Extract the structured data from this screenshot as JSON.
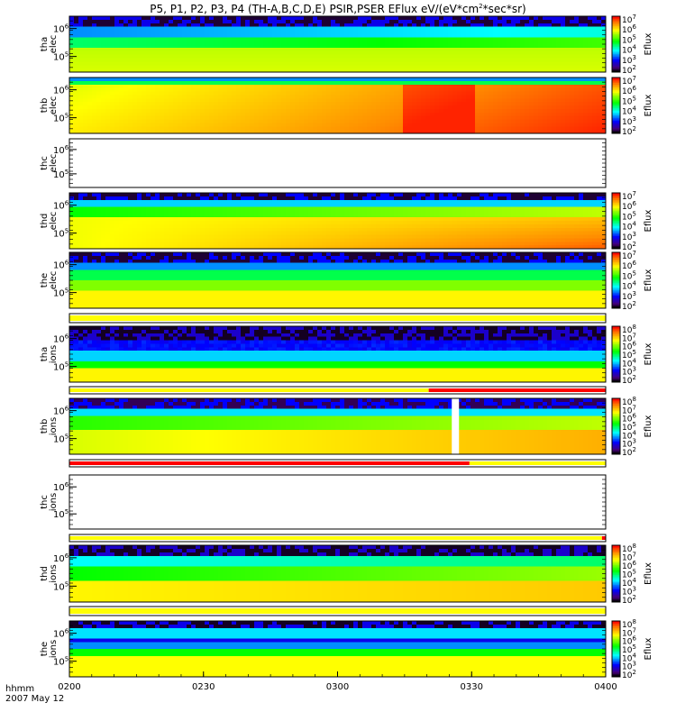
{
  "figure": {
    "title": "P5, P1, P2, P3, P4 (TH-A,B,C,D,E) PSIR,PSER EFlux eV/(eV*cm",
    "title_sup": "2",
    "title_end": "*sec*sr)",
    "time_label": "hhmm",
    "date_label": "2007 May 12"
  },
  "chart_data": {
    "type": "heatmap",
    "x_ticks": [
      "0200",
      "0230",
      "0300",
      "0330",
      "0400"
    ],
    "x_range": [
      "0200",
      "0400"
    ],
    "colorbar_label": "Eflux",
    "panels": [
      {
        "probe": "tha",
        "species": "elec",
        "y_ticks": [
          "10",
          "10"
        ],
        "y_exps": [
          "5",
          "6"
        ],
        "cb_exps": [
          "2",
          "3",
          "4",
          "5",
          "6",
          "7"
        ],
        "empty": false,
        "style": "tha_e"
      },
      {
        "probe": "thb",
        "species": "elec",
        "y_ticks": [
          "10",
          "10"
        ],
        "y_exps": [
          "5",
          "6"
        ],
        "cb_exps": [
          "2",
          "3",
          "4",
          "5",
          "6",
          "7"
        ],
        "empty": false,
        "style": "thb_e"
      },
      {
        "probe": "thc",
        "species": "elec",
        "y_ticks": [
          "10",
          "10"
        ],
        "y_exps": [
          "5",
          "6"
        ],
        "cb_exps": [],
        "empty": true,
        "style": "empty"
      },
      {
        "probe": "thd",
        "species": "elec",
        "y_ticks": [
          "10",
          "10"
        ],
        "y_exps": [
          "5",
          "6"
        ],
        "cb_exps": [
          "2",
          "3",
          "4",
          "5",
          "6",
          "7"
        ],
        "empty": false,
        "style": "thd_e"
      },
      {
        "probe": "the",
        "species": "elec",
        "y_ticks": [
          "10",
          "10"
        ],
        "y_exps": [
          "5",
          "6"
        ],
        "cb_exps": [
          "2",
          "3",
          "4",
          "5",
          "6",
          "7"
        ],
        "empty": false,
        "style": "the_e"
      },
      {
        "probe": "tha",
        "species": "ions",
        "y_ticks": [
          "10",
          "10"
        ],
        "y_exps": [
          "5",
          "6"
        ],
        "cb_exps": [
          "2",
          "3",
          "4",
          "5",
          "6",
          "7",
          "8"
        ],
        "empty": false,
        "style": "tha_i"
      },
      {
        "probe": "thb",
        "species": "ions",
        "y_ticks": [
          "10",
          "10"
        ],
        "y_exps": [
          "5",
          "6"
        ],
        "cb_exps": [
          "2",
          "3",
          "4",
          "5",
          "6",
          "7",
          "8"
        ],
        "empty": false,
        "style": "thb_i"
      },
      {
        "probe": "thc",
        "species": "ions",
        "y_ticks": [
          "10",
          "10"
        ],
        "y_exps": [
          "5",
          "6"
        ],
        "cb_exps": [],
        "empty": true,
        "style": "empty"
      },
      {
        "probe": "thd",
        "species": "ions",
        "y_ticks": [
          "10",
          "10"
        ],
        "y_exps": [
          "5",
          "6"
        ],
        "cb_exps": [
          "2",
          "3",
          "4",
          "5",
          "6",
          "7",
          "8"
        ],
        "empty": false,
        "style": "thd_i"
      },
      {
        "probe": "the",
        "species": "ions",
        "y_ticks": [
          "10",
          "10"
        ],
        "y_exps": [
          "5",
          "6"
        ],
        "cb_exps": [
          "2",
          "3",
          "4",
          "5",
          "6",
          "7",
          "8"
        ],
        "empty": false,
        "style": "the_i"
      }
    ],
    "mode_bars": [
      {
        "after_panel": 5,
        "segments": [
          {
            "from": 0.0,
            "to": 1.0,
            "color": "#ffff00"
          }
        ]
      },
      {
        "after_panel": 6,
        "segments": [
          {
            "from": 0.0,
            "to": 0.67,
            "color": "#ffff00"
          },
          {
            "from": 0.67,
            "to": 1.0,
            "color": "#ff0000"
          }
        ]
      },
      {
        "after_panel": 7,
        "segments": [
          {
            "from": 0.0,
            "to": 0.746,
            "color": "#ff0000"
          },
          {
            "from": 0.746,
            "to": 1.0,
            "color": "#ffff00"
          }
        ]
      },
      {
        "after_panel": 8,
        "segments": [
          {
            "from": 0.0,
            "to": 0.993,
            "color": "#ffff00"
          },
          {
            "from": 0.993,
            "to": 1.0,
            "color": "#ff0000"
          }
        ]
      },
      {
        "after_panel": 9,
        "segments": [
          {
            "from": 0.0,
            "to": 1.0,
            "color": "#ffff00"
          }
        ]
      }
    ]
  }
}
